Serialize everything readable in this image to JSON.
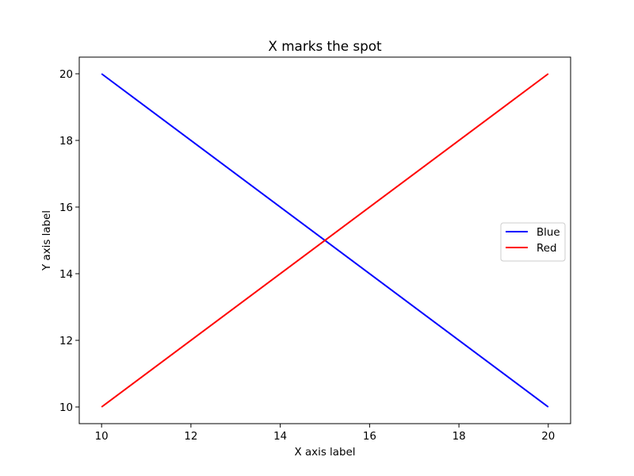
{
  "chart_data": {
    "type": "line",
    "title": "X marks the spot",
    "xlabel": "X axis label",
    "ylabel": "Y axis label",
    "xlim": [
      9.5,
      20.5
    ],
    "ylim": [
      9.5,
      20.5
    ],
    "xticks": [
      10,
      12,
      14,
      16,
      18,
      20
    ],
    "yticks": [
      10,
      12,
      14,
      16,
      18,
      20
    ],
    "grid": false,
    "legend_position": "center-right",
    "series": [
      {
        "name": "Blue",
        "color": "#0000ff",
        "x": [
          10,
          20
        ],
        "y": [
          20,
          10
        ]
      },
      {
        "name": "Red",
        "color": "#ff0000",
        "x": [
          10,
          20
        ],
        "y": [
          10,
          20
        ]
      }
    ]
  }
}
